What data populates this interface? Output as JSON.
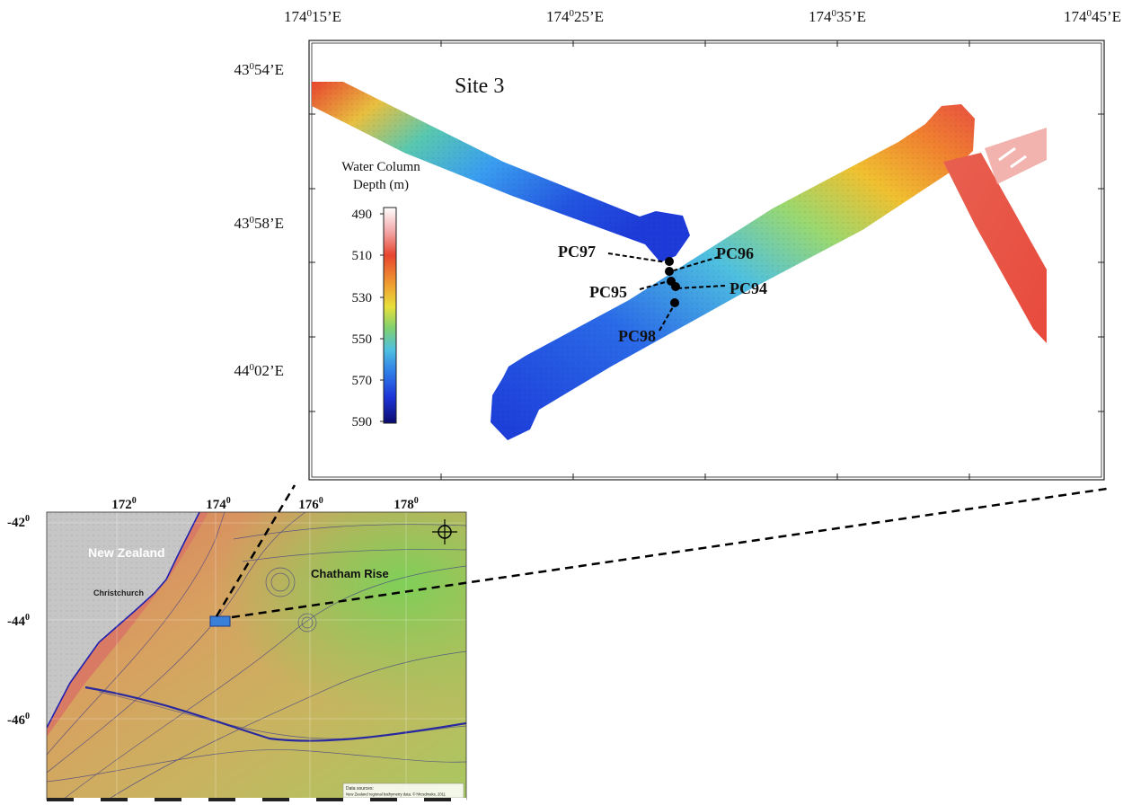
{
  "main_map": {
    "site_label": "Site 3",
    "top_longitude_labels": [
      {
        "deg": "174",
        "sup": "0",
        "min": "15’E"
      },
      {
        "deg": "174",
        "sup": "0",
        "min": "25’E"
      },
      {
        "deg": "174",
        "sup": "0",
        "min": "35’E"
      },
      {
        "deg": "174",
        "sup": "0",
        "min": "45’E"
      }
    ],
    "left_latitude_labels": [
      {
        "deg": "43",
        "sup": "0",
        "min": "54’E"
      },
      {
        "deg": "43",
        "sup": "0",
        "min": "58’E"
      },
      {
        "deg": "44",
        "sup": "0",
        "min": "02’E"
      }
    ],
    "colorbar": {
      "title_line1": "Water Column",
      "title_line2": "Depth (m)",
      "ticks": [
        "490",
        "510",
        "530",
        "550",
        "570",
        "590"
      ],
      "colors": [
        "#ffffff",
        "#f2a0a0",
        "#e8452f",
        "#f0a030",
        "#e8e03a",
        "#7fd070",
        "#4fc0e0",
        "#2f7fe8",
        "#1d34d8",
        "#0b0b6e"
      ]
    },
    "sample_points": [
      {
        "name": "PC97"
      },
      {
        "name": "PC96"
      },
      {
        "name": "PC95"
      },
      {
        "name": "PC94"
      },
      {
        "name": "PC98"
      }
    ]
  },
  "inset_map": {
    "top_longitude_labels": [
      {
        "deg": "172",
        "sup": "0"
      },
      {
        "deg": "174",
        "sup": "0"
      },
      {
        "deg": "176",
        "sup": "0"
      },
      {
        "deg": "178",
        "sup": "0"
      }
    ],
    "left_latitude_labels": [
      {
        "deg": "-42",
        "sup": "0"
      },
      {
        "deg": "-44",
        "sup": "0"
      },
      {
        "deg": "-46",
        "sup": "0"
      }
    ],
    "place_labels": {
      "new_zealand": "New Zealand",
      "christchurch": "Christchurch",
      "chatham_rise": "Chatham Rise"
    },
    "credit_line1": "Data sources:",
    "credit_line2": "New Zealand regional bathymetry data. © hhcsdmaks, 2011",
    "compass_icon": "compass-icon",
    "colors": {
      "shelf": "#e07a63",
      "slope": "#d8a060",
      "plateau": "#b8c060",
      "rise": "#8ecf5a",
      "land": "#c8c8c8"
    }
  }
}
